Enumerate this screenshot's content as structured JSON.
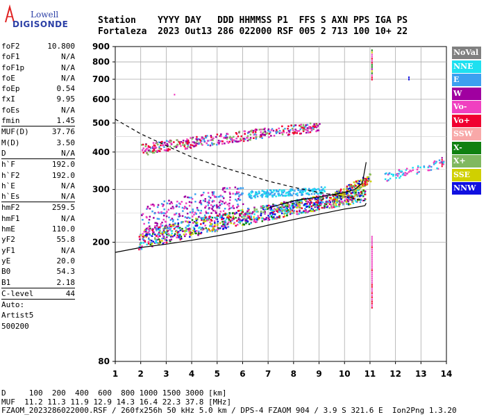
{
  "logo": {
    "line1": "Lowell",
    "line2": "DIGISONDE"
  },
  "header": {
    "line1": "Station    YYYY DAY   DDD HHMMSS P1  FFS S AXN PPS IGA PS",
    "line2": "Fortaleza  2023 Out13 286 022000 RSF 005 2 713 100 10+ 22"
  },
  "params": [
    {
      "k": "foF2",
      "v": "10.800"
    },
    {
      "k": "foF1",
      "v": "N/A"
    },
    {
      "k": "foF1p",
      "v": "N/A"
    },
    {
      "k": "foE",
      "v": "N/A"
    },
    {
      "k": "foEp",
      "v": "0.54"
    },
    {
      "k": "fxI",
      "v": "9.95"
    },
    {
      "k": "foEs",
      "v": "N/A"
    },
    {
      "k": "fmin",
      "v": "1.45"
    },
    {
      "k": "MUF(D)",
      "v": "37.76",
      "sep": true
    },
    {
      "k": "M(D)",
      "v": "3.50"
    },
    {
      "k": "D",
      "v": "N/A"
    },
    {
      "k": "h`F",
      "v": "192.0",
      "sep": true
    },
    {
      "k": "h`F2",
      "v": "192.0"
    },
    {
      "k": "h`E",
      "v": "N/A"
    },
    {
      "k": "h`Es",
      "v": "N/A"
    },
    {
      "k": "hmF2",
      "v": "259.5",
      "sep": true
    },
    {
      "k": "hmF1",
      "v": "N/A"
    },
    {
      "k": "hmE",
      "v": "110.0"
    },
    {
      "k": "yF2",
      "v": "55.8"
    },
    {
      "k": "yF1",
      "v": "N/A"
    },
    {
      "k": "yE",
      "v": "20.0"
    },
    {
      "k": "B0",
      "v": "54.3"
    },
    {
      "k": "B1",
      "v": "2.18"
    },
    {
      "k": "C-level",
      "v": "44",
      "sep": true
    },
    {
      "k": "Auto:",
      "v": "",
      "sep": true
    },
    {
      "k": "Artist5",
      "v": ""
    },
    {
      "k": "500200",
      "v": ""
    }
  ],
  "legend": [
    {
      "label": "NoVal",
      "color": "#808080"
    },
    {
      "label": "NNE",
      "color": "#1ee0f0"
    },
    {
      "label": "E",
      "color": "#3ca0f0"
    },
    {
      "label": "W",
      "color": "#a000a0"
    },
    {
      "label": "Vo-",
      "color": "#f040c0"
    },
    {
      "label": "Vo+",
      "color": "#f00030"
    },
    {
      "label": "SSW",
      "color": "#f8a8a8"
    },
    {
      "label": "X-",
      "color": "#108010"
    },
    {
      "label": "X+",
      "color": "#80b860"
    },
    {
      "label": "SSE",
      "color": "#d0d000"
    },
    {
      "label": "NNW",
      "color": "#1010e0"
    }
  ],
  "footer": {
    "line1": "D     100  200  400  600  800 1000 1500 3000 [km]",
    "line2": "MUF  11.2 11.3 11.9 12.9 14.3 16.4 22.3 37.8 [MHz]",
    "line3": "FZAOM_2023286022000.RSF / 260fx256h 50 kHz 5.0 km / DPS-4 FZAOM 904 / 3.9 S 321.6 E  Ion2Png 1.3.20"
  },
  "chart_data": {
    "type": "scatter",
    "x": {
      "min": 1,
      "max": 14,
      "ticks": [
        1,
        2,
        3,
        4,
        5,
        6,
        7,
        8,
        9,
        10,
        11,
        12,
        13,
        14
      ]
    },
    "y": {
      "min": 80,
      "max": 900,
      "scale": "log",
      "ticks": [
        80,
        200,
        300,
        400,
        500,
        600,
        700,
        800,
        900
      ]
    },
    "grid": true,
    "clusters": [
      {
        "name": "F2 O-trace",
        "x_range": [
          1.9,
          10.8
        ],
        "h_start": 205,
        "h_end": 290,
        "spread": 15,
        "colors": [
          "#f00030",
          "#f040c0",
          "#a000a0",
          "#3ca0f0",
          "#1ee0f0",
          "#80b860",
          "#108010",
          "#d0d000",
          "#1010e0"
        ],
        "count": 1100
      },
      {
        "name": "F2 upper scatter",
        "x_range": [
          2.0,
          6.0
        ],
        "h_start": 240,
        "h_end": 290,
        "spread": 25,
        "colors": [
          "#a000a0",
          "#f040c0",
          "#3ca0f0"
        ],
        "count": 260
      },
      {
        "name": "NNE group",
        "x_range": [
          6.2,
          9.2
        ],
        "h_start": 290,
        "h_end": 300,
        "spread": 8,
        "colors": [
          "#3ca0f0",
          "#1ee0f0"
        ],
        "count": 180
      },
      {
        "name": "X-trace",
        "x_range": [
          9.5,
          11.0
        ],
        "h_start": 280,
        "h_end": 330,
        "spread": 12,
        "colors": [
          "#f00030",
          "#1010e0",
          "#80b860",
          "#d0d000"
        ],
        "count": 150
      },
      {
        "name": "Multi-hop",
        "x_range": [
          2.0,
          9.0
        ],
        "h_start": 410,
        "h_end": 490,
        "spread": 18,
        "colors": [
          "#f00030",
          "#f040c0",
          "#3ca0f0",
          "#80b860",
          "#a000a0"
        ],
        "count": 420
      },
      {
        "name": "High-freq tail",
        "x_range": [
          11.5,
          13.9
        ],
        "h_start": 330,
        "h_end": 370,
        "spread": 12,
        "colors": [
          "#1ee0f0",
          "#3ca0f0",
          "#f040c0"
        ],
        "count": 70
      }
    ],
    "spikes": [
      {
        "x": 11.05,
        "h_from": 700,
        "h_to": 880,
        "colors": [
          "#f00030",
          "#108010",
          "#d0d000",
          "#f040c0",
          "#a000a0"
        ]
      },
      {
        "x": 11.05,
        "h_from": 120,
        "h_to": 210,
        "colors": [
          "#f040c0",
          "#f00030"
        ]
      },
      {
        "x": 12.5,
        "h_from": 700,
        "h_to": 715,
        "colors": [
          "#1010e0"
        ]
      },
      {
        "x": 3.3,
        "h_from": 622,
        "h_to": 626,
        "colors": [
          "#f040c0"
        ]
      },
      {
        "x": 13.8,
        "h_from": 360,
        "h_to": 385,
        "colors": [
          "#f00030",
          "#a000a0"
        ]
      }
    ],
    "curves": [
      {
        "name": "O-profile",
        "style": "solid",
        "points": [
          [
            1.0,
            185
          ],
          [
            2.0,
            192
          ],
          [
            3.0,
            197
          ],
          [
            4.0,
            203
          ],
          [
            5.0,
            210
          ],
          [
            6.0,
            218
          ],
          [
            7.0,
            228
          ],
          [
            8.0,
            238
          ],
          [
            9.0,
            248
          ],
          [
            10.0,
            258
          ],
          [
            10.5,
            262
          ],
          [
            10.8,
            265
          ],
          [
            10.85,
            270
          ]
        ]
      },
      {
        "name": "X-profile",
        "style": "solid",
        "points": [
          [
            7.0,
            260
          ],
          [
            8.0,
            275
          ],
          [
            9.0,
            283
          ],
          [
            9.5,
            288
          ],
          [
            10.0,
            293
          ],
          [
            10.4,
            300
          ],
          [
            10.7,
            315
          ],
          [
            10.85,
            370
          ]
        ]
      },
      {
        "name": "Electron density",
        "style": "dashed",
        "points": [
          [
            1.0,
            515
          ],
          [
            2.0,
            460
          ],
          [
            3.0,
            420
          ],
          [
            4.0,
            385
          ],
          [
            5.0,
            360
          ],
          [
            6.0,
            340
          ],
          [
            7.0,
            320
          ],
          [
            8.0,
            305
          ],
          [
            9.0,
            293
          ],
          [
            10.0,
            284
          ],
          [
            10.8,
            275
          ]
        ]
      }
    ]
  }
}
